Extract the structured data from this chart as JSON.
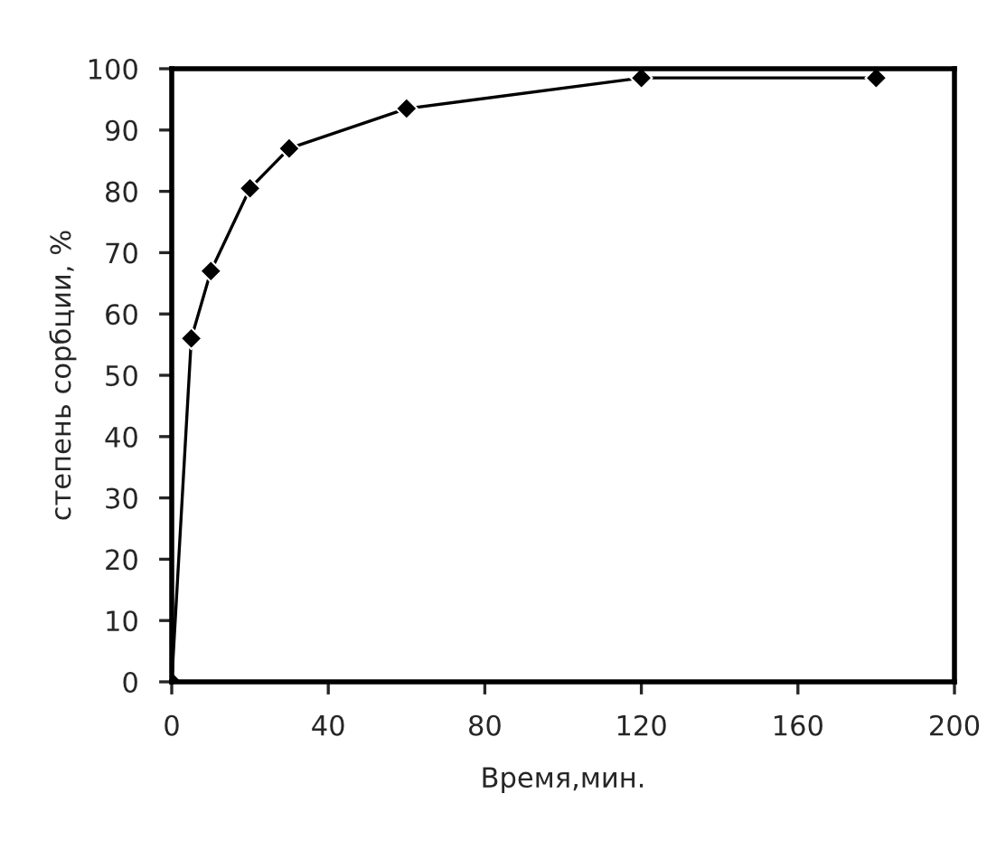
{
  "chart_data": {
    "type": "line",
    "xlabel": "Время,мин.",
    "ylabel": "степень сорбции, %",
    "x": [
      0,
      5,
      10,
      20,
      30,
      60,
      120,
      180
    ],
    "series": [
      {
        "color": "#000000",
        "values": [
          0,
          56,
          67,
          80.5,
          87,
          93.5,
          98.5,
          98.5
        ]
      }
    ],
    "xlim": [
      0,
      200
    ],
    "xticks": [
      0,
      40,
      80,
      120,
      160,
      200
    ],
    "ylim": [
      0,
      100
    ],
    "yticks": [
      0,
      10,
      20,
      30,
      40,
      50,
      60,
      70,
      80,
      90,
      100
    ],
    "grid": false,
    "marker": "diamond",
    "line_style": "solid"
  }
}
